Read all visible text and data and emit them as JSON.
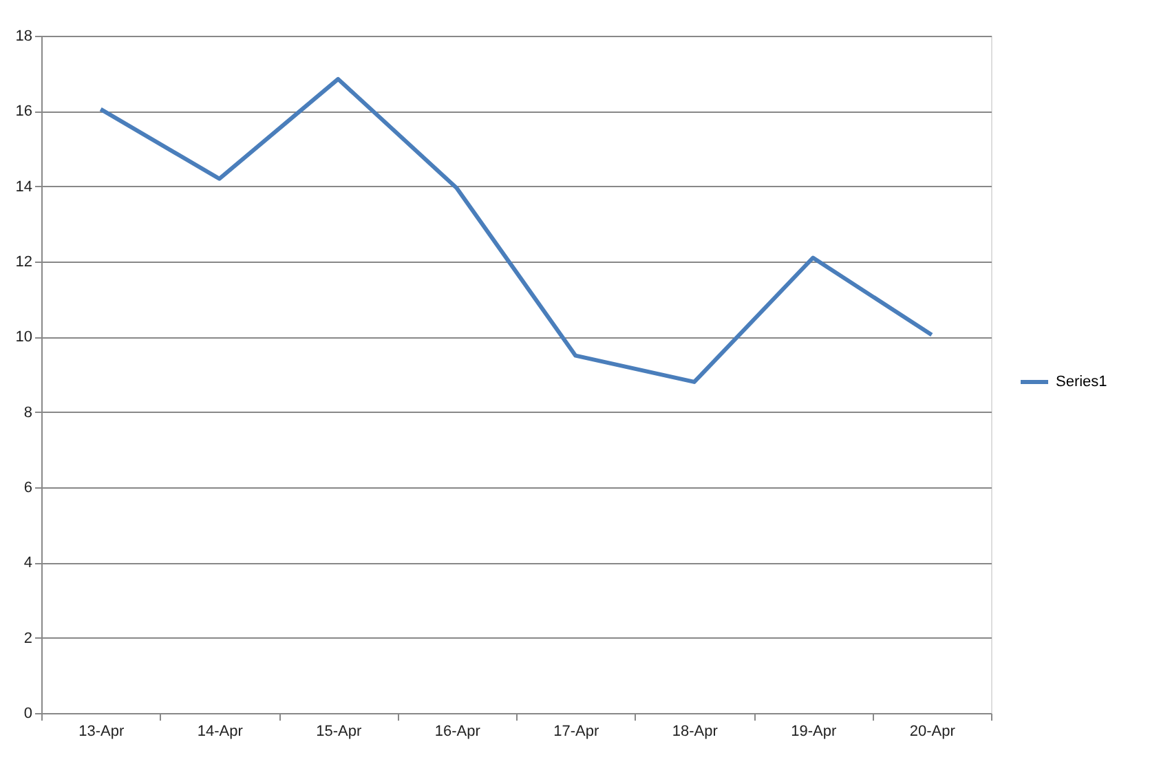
{
  "chart_data": {
    "type": "line",
    "categories": [
      "13-Apr",
      "14-Apr",
      "15-Apr",
      "16-Apr",
      "17-Apr",
      "18-Apr",
      "19-Apr",
      "20-Apr"
    ],
    "series": [
      {
        "name": "Series1",
        "color": "#4a7ebb",
        "values": [
          16.05,
          14.2,
          16.85,
          13.95,
          9.5,
          8.8,
          12.1,
          10.05
        ]
      }
    ],
    "ylim": [
      0,
      18
    ],
    "yticks": [
      0,
      2,
      4,
      6,
      8,
      10,
      12,
      14,
      16,
      18
    ],
    "grid": "y",
    "legend": "right",
    "marker": "none",
    "line_style": "solid"
  }
}
